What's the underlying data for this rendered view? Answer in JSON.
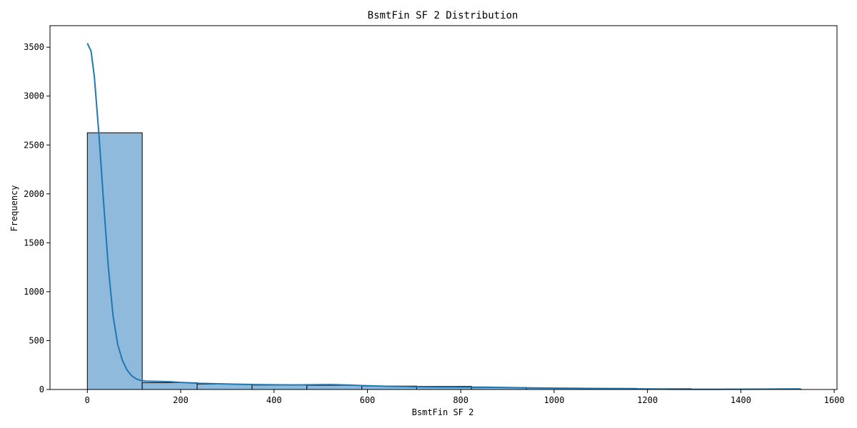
{
  "chart_data": {
    "type": "bar",
    "title": "BsmtFin SF 2 Distribution",
    "xlabel": "BsmtFin SF 2",
    "ylabel": "Frequency",
    "xlim": [
      -80,
      1606
    ],
    "ylim": [
      0,
      3720
    ],
    "xticks": [
      0,
      200,
      400,
      600,
      800,
      1000,
      1200,
      1400,
      1600
    ],
    "yticks": [
      0,
      500,
      1000,
      1500,
      2000,
      2500,
      3000,
      3500
    ],
    "bin_edges": [
      0,
      117.6,
      235.2,
      352.8,
      470.4,
      588.0,
      705.6,
      823.2,
      940.8,
      1058.4,
      1176.0,
      1293.6,
      1411.2,
      1528.8
    ],
    "counts": [
      2625,
      70,
      55,
      45,
      42,
      35,
      32,
      20,
      15,
      12,
      8,
      3,
      4
    ],
    "kde": {
      "x": [
        0,
        8,
        15,
        25,
        35,
        45,
        55,
        65,
        75,
        85,
        95,
        105,
        115,
        125,
        140,
        160,
        180,
        200,
        240,
        280,
        320,
        360,
        400,
        440,
        480,
        520,
        560,
        600,
        650,
        700,
        750,
        800,
        850,
        900,
        950,
        1000,
        1050,
        1100,
        1150,
        1200,
        1250,
        1300,
        1350,
        1400,
        1450,
        1500,
        1528
      ],
      "y": [
        3540,
        3460,
        3200,
        2600,
        1900,
        1250,
        760,
        460,
        300,
        200,
        140,
        108,
        92,
        85,
        84,
        82,
        78,
        72,
        63,
        58,
        54,
        50,
        48,
        47,
        48,
        50,
        45,
        38,
        32,
        28,
        25,
        24,
        23,
        20,
        16,
        14,
        12,
        10,
        8,
        5,
        3,
        2,
        2,
        3,
        4,
        5,
        5
      ]
    },
    "colors": {
      "bar_fill": "#8fbadb",
      "bar_edge": "#000000",
      "kde_line": "#1f77b4"
    },
    "grid": false,
    "legend": "none"
  }
}
